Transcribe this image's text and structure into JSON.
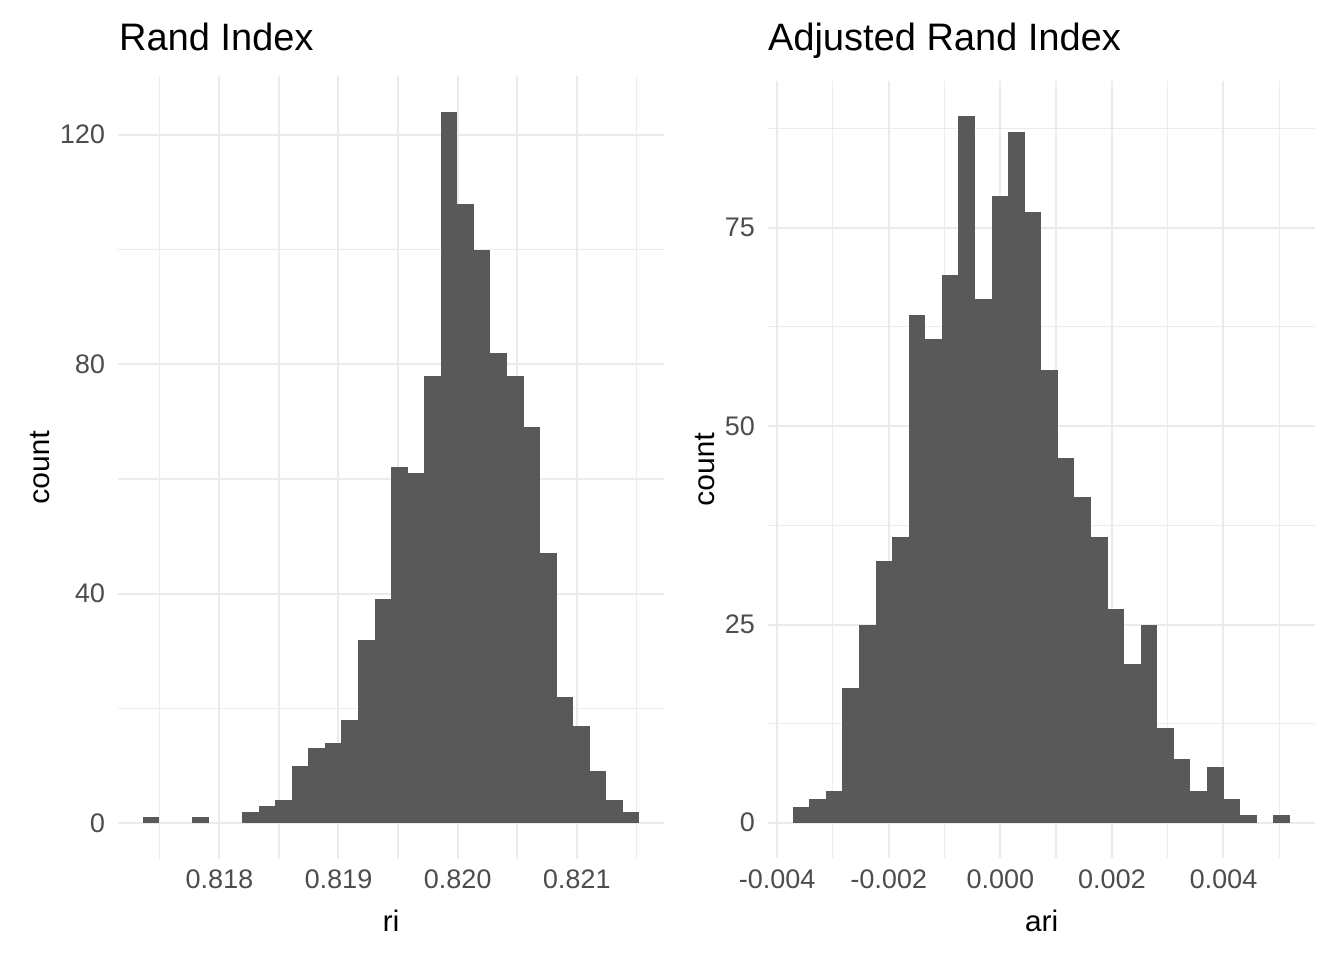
{
  "figure": {
    "background": "#FFFFFF",
    "n_panels": 2
  },
  "style": {
    "bar_fill": "#595959",
    "grid_major_color": "#EBEBEB",
    "grid_minor_color": "#ECECEC",
    "tick_label_color": "#4D4D4D",
    "text_color": "#000000"
  },
  "chart_data": [
    {
      "type": "bar",
      "subtype": "histogram",
      "title": "Rand Index",
      "xlabel": "ri",
      "ylabel": "count",
      "bin_start": 0.817357,
      "bin_width": 0.000139,
      "counts": [
        1,
        0,
        0,
        1,
        0,
        0,
        2,
        3,
        4,
        10,
        13,
        14,
        18,
        32,
        39,
        62,
        61,
        78,
        124,
        108,
        100,
        82,
        78,
        69,
        47,
        22,
        17,
        9,
        4,
        2
      ],
      "total_count": 1000,
      "x_ticks": {
        "values": [
          0.818,
          0.819,
          0.82,
          0.821
        ],
        "labels": [
          "0.818",
          "0.819",
          "0.820",
          "0.821"
        ]
      },
      "y_ticks": {
        "values": [
          0,
          40,
          80,
          120
        ],
        "labels": [
          "0",
          "40",
          "80",
          "120"
        ]
      },
      "xlim": [
        0.8171485,
        0.8217355
      ],
      "ylim": [
        -6.2,
        130.2
      ],
      "grid": true,
      "legend": "none"
    },
    {
      "type": "bar",
      "subtype": "histogram",
      "title": "Adjusted Rand Index",
      "xlabel": "ari",
      "ylabel": "count",
      "bin_start": -0.00372,
      "bin_width": 0.000297,
      "counts": [
        2,
        3,
        4,
        17,
        25,
        33,
        36,
        64,
        61,
        69,
        89,
        66,
        79,
        87,
        77,
        57,
        46,
        41,
        36,
        27,
        20,
        25,
        12,
        8,
        4,
        7,
        3,
        1,
        0,
        1
      ],
      "total_count": 1000,
      "x_ticks": {
        "values": [
          -0.004,
          -0.002,
          0.0,
          0.002,
          0.004
        ],
        "labels": [
          "-0.004",
          "-0.002",
          "0.000",
          "0.002",
          "0.004"
        ]
      },
      "y_ticks": {
        "values": [
          0,
          25,
          50,
          75
        ],
        "labels": [
          "0",
          "25",
          "50",
          "75"
        ]
      },
      "xlim": [
        -0.0041655,
        0.0056355
      ],
      "ylim": [
        -4.45,
        93.45
      ],
      "grid": true,
      "legend": "none"
    }
  ]
}
